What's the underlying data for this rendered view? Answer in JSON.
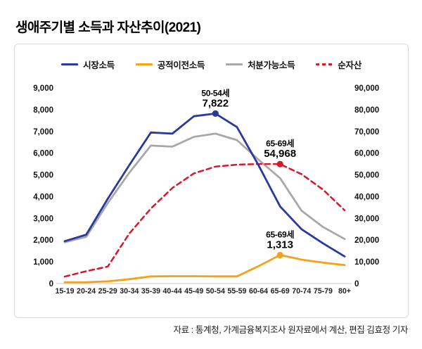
{
  "title": "생애주기별 소득과 자산추이(2021)",
  "caption": "자료 : 통계청, 가계금융복지조사 원자료에서 계산, 편집 김효정 기자",
  "colors": {
    "market_income": "#2a3a9c",
    "public_transfer_income": "#f5a21b",
    "disposable_income": "#a8a8aa",
    "net_assets": "#d7182c",
    "axis_line": "#c9c9c9",
    "card_border": "#d9d9d9"
  },
  "chart_data": {
    "type": "line",
    "title": "생애주기별 소득과 자산추이(2021)",
    "categories": [
      "15-19",
      "20-24",
      "25-29",
      "30-34",
      "35-39",
      "40-44",
      "45-49",
      "50-54",
      "55-59",
      "60-64",
      "65-69",
      "70-74",
      "75-79",
      "80+"
    ],
    "series": [
      {
        "key": "market-income",
        "name": "시장소득",
        "axis": "left",
        "color": "#2a3a9c",
        "style": "solid",
        "values": [
          1950,
          2250,
          3900,
          5450,
          6950,
          6900,
          7700,
          7822,
          7200,
          5450,
          3550,
          2500,
          1850,
          1250
        ]
      },
      {
        "key": "public-transfer-income",
        "name": "공적이전소득",
        "axis": "left",
        "color": "#f5a21b",
        "style": "solid",
        "values": [
          60,
          60,
          100,
          200,
          330,
          340,
          340,
          330,
          330,
          800,
          1313,
          1100,
          960,
          850
        ]
      },
      {
        "key": "disposable-income",
        "name": "처분가능소득",
        "axis": "left",
        "color": "#a8a8aa",
        "style": "solid",
        "values": [
          1900,
          2150,
          3700,
          5100,
          6350,
          6300,
          6750,
          6900,
          6600,
          5700,
          4850,
          3350,
          2600,
          2050
        ]
      },
      {
        "key": "net-assets",
        "name": "순자산",
        "axis": "right",
        "color": "#d7182c",
        "style": "dashed",
        "values": [
          3200,
          5700,
          7800,
          23000,
          34500,
          44000,
          50700,
          53800,
          54700,
          55000,
          54968,
          50300,
          43200,
          33700
        ]
      }
    ],
    "left_axis": {
      "ylim": [
        0,
        9000
      ],
      "ticks": [
        "0",
        "1,000",
        "2,000",
        "3,000",
        "4,000",
        "5,000",
        "6,000",
        "7,000",
        "8,000",
        "9,000"
      ]
    },
    "right_axis": {
      "ylim": [
        0,
        90000
      ],
      "ticks": [
        "0",
        "10,000",
        "20,000",
        "30,000",
        "40,000",
        "50,000",
        "60,000",
        "70,000",
        "80,000",
        "90,000"
      ]
    },
    "annotations": [
      {
        "series": "시장소득",
        "series_key": "market-income",
        "category": "50-54",
        "label": "50-54세",
        "value_label": "7,822",
        "value": 7822
      },
      {
        "series": "순자산",
        "series_key": "net-assets",
        "category": "65-69",
        "label": "65-69세",
        "value_label": "54,968",
        "value": 54968
      },
      {
        "series": "공적이전소득",
        "series_key": "public-transfer-income",
        "category": "65-69",
        "label": "65-69세",
        "value_label": "1,313",
        "value": 1313
      }
    ],
    "legend_position": "top",
    "grid": false,
    "xlabel": "",
    "ylabel": ""
  }
}
